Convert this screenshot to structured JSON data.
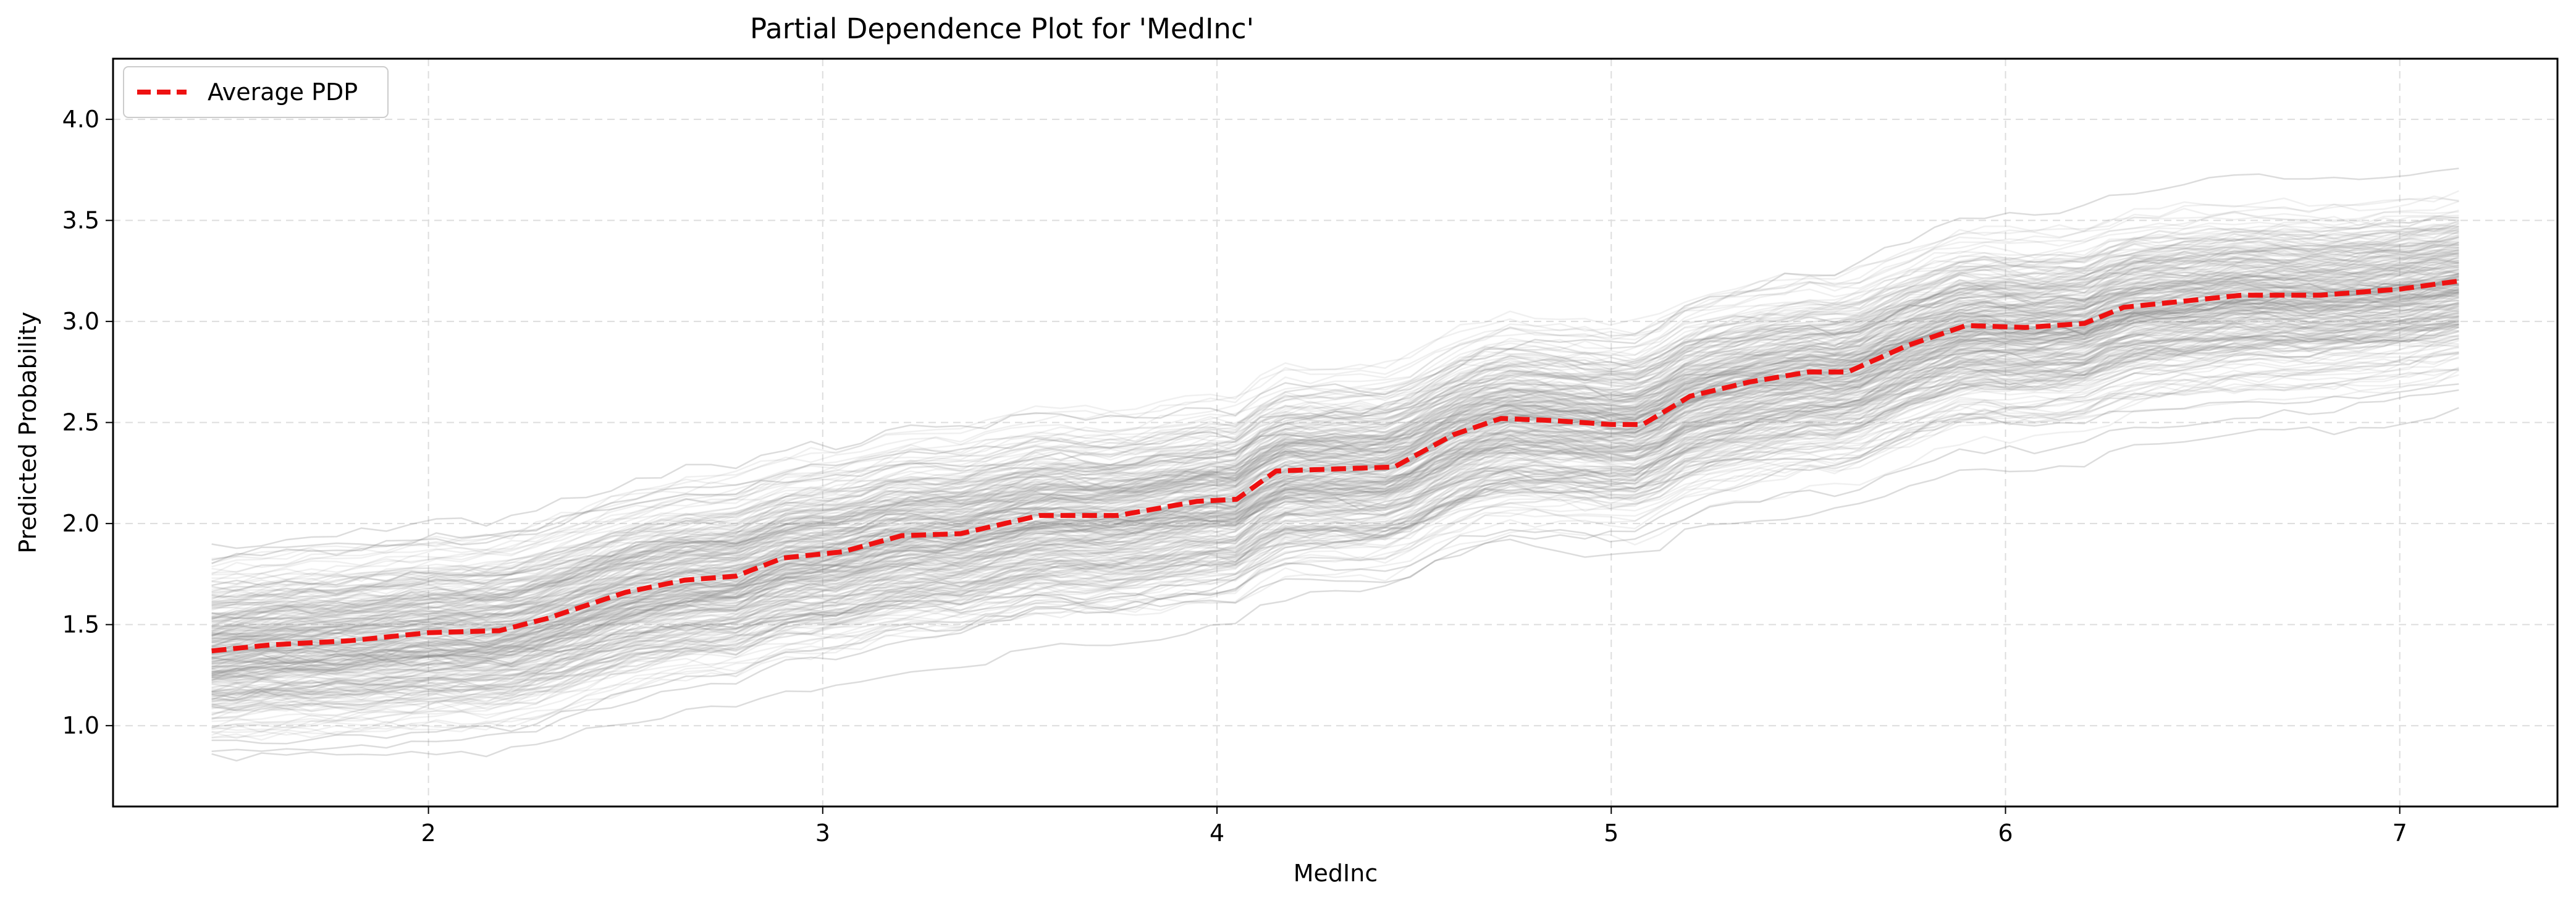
{
  "chart_data": {
    "type": "line",
    "title": "Partial Dependence Plot for 'MedInc'",
    "xlabel": "MedInc",
    "ylabel": "Predicted Probability",
    "xlim": [
      1.2,
      7.4
    ],
    "ylim": [
      0.6,
      4.3
    ],
    "x_ticks": [
      2,
      3,
      4,
      5,
      6,
      7
    ],
    "x_tick_labels": [
      "2",
      "3",
      "4",
      "5",
      "6",
      "7"
    ],
    "y_ticks": [
      1.0,
      1.5,
      2.0,
      2.5,
      3.0,
      3.5,
      4.0
    ],
    "y_tick_labels": [
      "1.0",
      "1.5",
      "2.0",
      "2.5",
      "3.0",
      "3.5",
      "4.0"
    ],
    "grid": true,
    "legend_position": "top-left",
    "colors": {
      "pdp": "#ee1111",
      "ice": "#808080",
      "grid": "#dddddd"
    },
    "series": [
      {
        "name": "Average PDP",
        "style": "dashed",
        "x": [
          1.45,
          1.6,
          1.8,
          2.0,
          2.18,
          2.3,
          2.5,
          2.65,
          2.78,
          2.9,
          3.05,
          3.2,
          3.35,
          3.55,
          3.75,
          3.95,
          4.05,
          4.15,
          4.45,
          4.6,
          4.72,
          4.85,
          5.0,
          5.08,
          5.2,
          5.35,
          5.5,
          5.6,
          5.75,
          5.9,
          6.05,
          6.2,
          6.3,
          6.45,
          6.6,
          6.8,
          7.0,
          7.15
        ],
        "y": [
          1.37,
          1.4,
          1.42,
          1.46,
          1.47,
          1.53,
          1.66,
          1.72,
          1.74,
          1.83,
          1.86,
          1.94,
          1.95,
          2.04,
          2.04,
          2.11,
          2.12,
          2.26,
          2.28,
          2.44,
          2.52,
          2.51,
          2.49,
          2.49,
          2.63,
          2.7,
          2.75,
          2.75,
          2.88,
          2.98,
          2.97,
          2.99,
          3.07,
          3.1,
          3.13,
          3.13,
          3.16,
          3.2
        ]
      }
    ],
    "ice_curves": {
      "description_source": "individual conditional expectation curves (unlabeled, gray)",
      "count": 300,
      "x_min": 1.45,
      "x_max": 7.15,
      "step_points": [
        2.18,
        2.78,
        3.2,
        4.1,
        4.55,
        5.08,
        5.55,
        6.25,
        6.75
      ]
    }
  }
}
